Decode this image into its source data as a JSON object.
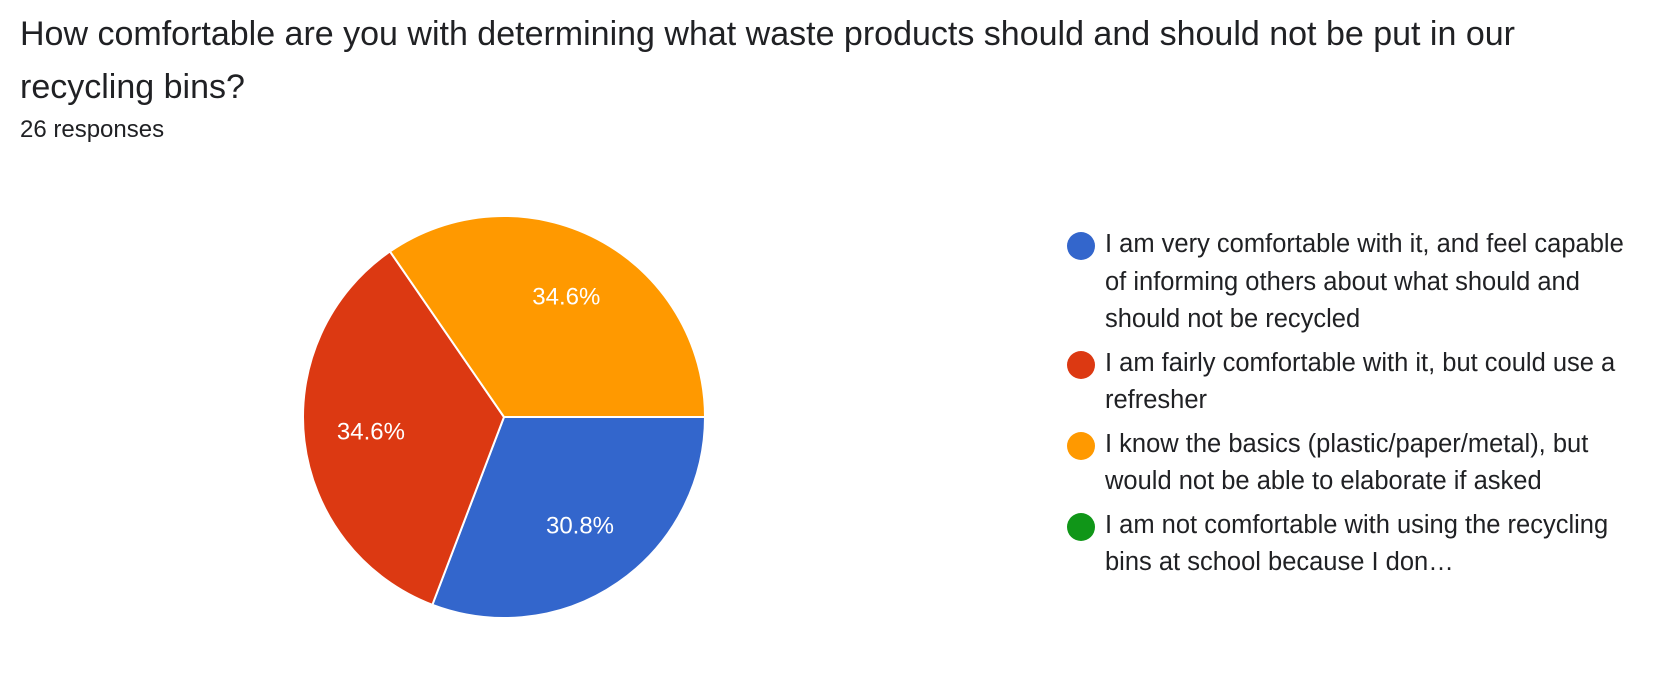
{
  "header": {
    "title": "How comfortable are you with determining what waste products should and should not be put in our recycling bins?",
    "responses": "26 responses"
  },
  "chart_data": {
    "type": "pie",
    "title": "How comfortable are you with determining what waste products should and should not be put in our recycling bins?",
    "legend_position": "right",
    "slices": [
      {
        "label": "I am very comfortable with it, and feel capable of informing others about what should and should not be recycled",
        "percent": 30.8,
        "percent_label": "30.8%",
        "color": "#3366CC"
      },
      {
        "label": "I am fairly comfortable with it, but could use a refresher",
        "percent": 34.6,
        "percent_label": "34.6%",
        "color": "#DC3912"
      },
      {
        "label": "I know the basics (plastic/paper/metal), but would not be able to elaborate if asked",
        "percent": 34.6,
        "percent_label": "34.6%",
        "color": "#FF9900"
      },
      {
        "label": "I am not comfortable with using the recycling bins at school because I don…",
        "percent": 0,
        "percent_label": "",
        "color": "#109618"
      }
    ]
  }
}
